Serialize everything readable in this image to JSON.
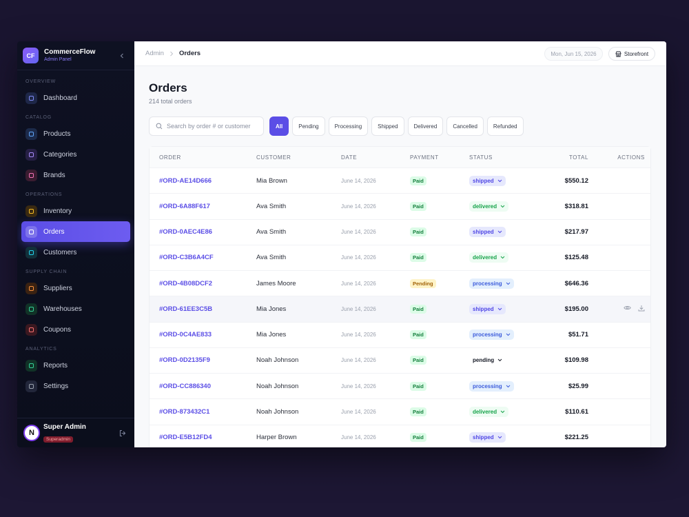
{
  "sidebar": {
    "brand": {
      "logo": "CF",
      "name": "CommerceFlow",
      "subtitle": "Admin Panel"
    },
    "sections": [
      {
        "title": "OVERVIEW",
        "items": [
          {
            "label": "Dashboard"
          }
        ]
      },
      {
        "title": "CATALOG",
        "items": [
          {
            "label": "Products"
          },
          {
            "label": "Categories"
          },
          {
            "label": "Brands"
          }
        ]
      },
      {
        "title": "OPERATIONS",
        "items": [
          {
            "label": "Inventory"
          },
          {
            "label": "Orders",
            "active": true
          },
          {
            "label": "Customers"
          }
        ]
      },
      {
        "title": "SUPPLY CHAIN",
        "items": [
          {
            "label": "Suppliers"
          },
          {
            "label": "Warehouses"
          },
          {
            "label": "Coupons"
          }
        ]
      },
      {
        "title": "ANALYTICS",
        "items": [
          {
            "label": "Reports"
          },
          {
            "label": "Settings"
          }
        ]
      }
    ],
    "user": {
      "avatar": "N",
      "name": "Super Admin",
      "role": "Superadmin"
    }
  },
  "topbar": {
    "breadcrumb": [
      "Admin",
      "Orders"
    ],
    "date": "Mon, Jun 15, 2026",
    "storefront": "Storefront"
  },
  "page": {
    "title": "Orders",
    "subtitle": "214 total orders",
    "search_placeholder": "Search by order # or customer",
    "filters": [
      {
        "label": "All",
        "selected": true
      },
      {
        "label": "Pending"
      },
      {
        "label": "Processing"
      },
      {
        "label": "Shipped"
      },
      {
        "label": "Delivered"
      },
      {
        "label": "Cancelled"
      },
      {
        "label": "Refunded"
      }
    ]
  },
  "table": {
    "headers": [
      "ORDER",
      "CUSTOMER",
      "DATE",
      "PAYMENT",
      "STATUS",
      "TOTAL",
      "ACTIONS"
    ],
    "rows": [
      [
        "#ORD-AE14D666",
        "Mia Brown",
        "June 14, 2026",
        "Paid",
        "shipped",
        "$550.12"
      ],
      [
        "#ORD-6A88F617",
        "Ava Smith",
        "June 14, 2026",
        "Paid",
        "delivered",
        "$318.81"
      ],
      [
        "#ORD-0AEC4E86",
        "Ava Smith",
        "June 14, 2026",
        "Paid",
        "shipped",
        "$217.97"
      ],
      [
        "#ORD-C3B6A4CF",
        "Ava Smith",
        "June 14, 2026",
        "Paid",
        "delivered",
        "$125.48"
      ],
      [
        "#ORD-4B08DCF2",
        "James Moore",
        "June 14, 2026",
        "Pending",
        "processing",
        "$646.36"
      ],
      [
        "#ORD-61EE3C5B",
        "Mia Jones",
        "June 14, 2026",
        "Paid",
        "shipped",
        "$195.00"
      ],
      [
        "#ORD-0C4AE833",
        "Mia Jones",
        "June 14, 2026",
        "Paid",
        "processing",
        "$51.71"
      ],
      [
        "#ORD-0D2135F9",
        "Noah Johnson",
        "June 14, 2026",
        "Paid",
        "pending",
        "$109.98"
      ],
      [
        "#ORD-CC886340",
        "Noah Johnson",
        "June 14, 2026",
        "Paid",
        "processing",
        "$25.99"
      ],
      [
        "#ORD-873432C1",
        "Noah Johnson",
        "June 14, 2026",
        "Paid",
        "delivered",
        "$110.61"
      ],
      [
        "#ORD-E5B12FD4",
        "Harper Brown",
        "June 14, 2026",
        "Paid",
        "shipped",
        "$221.25"
      ]
    ],
    "payment_styles": {
      "Paid": {
        "bg": "#dcfce7",
        "color": "#15803d"
      },
      "Pending": {
        "bg": "#fef3c7",
        "color": "#a16207"
      }
    },
    "status_styles": {
      "shipped": {
        "bg": "#e6e8fd",
        "color": "#4f46e5"
      },
      "delivered": {
        "bg": "#eefcf3",
        "color": "#16a34a"
      },
      "processing": {
        "bg": "#e3effd",
        "color": "#3b5bdb"
      },
      "pending": {
        "bg": "transparent",
        "color": "#141824"
      }
    }
  }
}
